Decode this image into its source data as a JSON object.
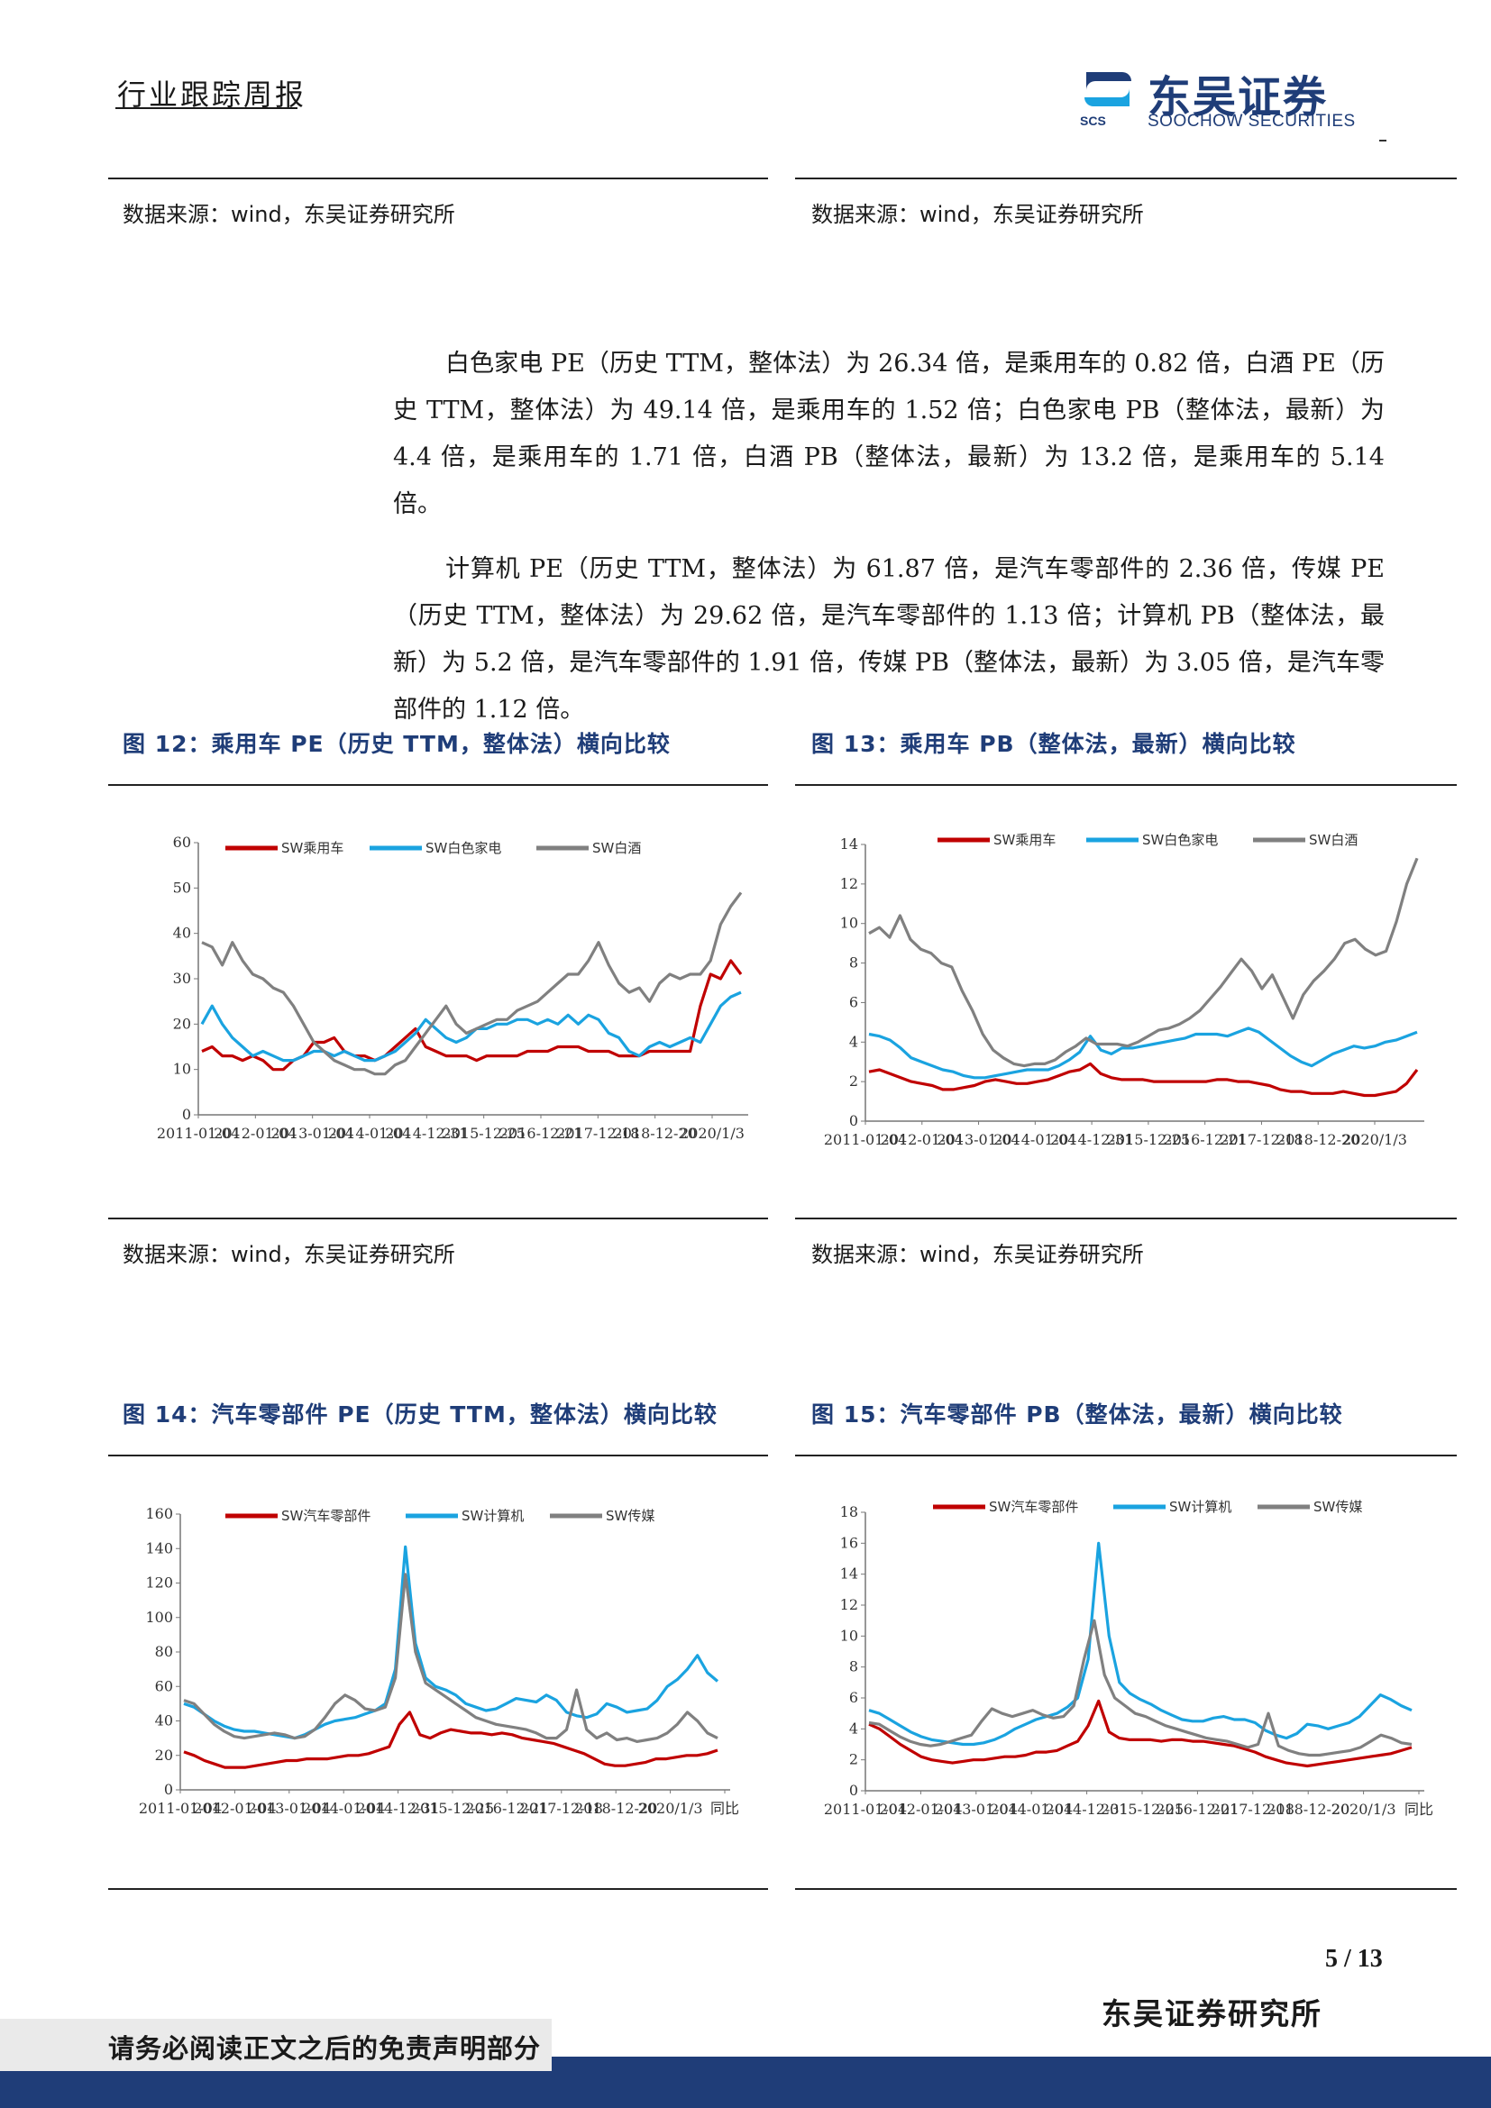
{
  "header": {
    "report_type": "行业跟踪周报",
    "logo_cn": "东吴证券",
    "logo_en": "SOOCHOW SECURITIES",
    "logo_abbr": "SCS",
    "brand_color": "#1f3d78"
  },
  "top_sources": {
    "left": "数据来源：wind，东吴证券研究所",
    "right": "数据来源：wind，东吴证券研究所"
  },
  "body": {
    "paragraphs": [
      "白色家电 PE（历史 TTM，整体法）为 26.34 倍，是乘用车的 0.82 倍，白酒 PE（历史 TTM，整体法）为 49.14 倍，是乘用车的 1.52 倍；白色家电 PB（整体法，最新）为 4.4 倍，是乘用车的 1.71 倍，白酒 PB（整体法，最新）为 13.2 倍，是乘用车的 5.14 倍。",
      "计算机 PE（历史 TTM，整体法）为 61.87 倍，是汽车零部件的 2.36 倍，传媒 PE（历史 TTM，整体法）为 29.62 倍，是汽车零部件的 1.13 倍；计算机 PB（整体法，最新）为 5.2 倍，是汽车零部件的 1.91 倍，传媒 PB（整体法，最新）为 3.05 倍，是汽车零部件的 1.12 倍。"
    ]
  },
  "figures": {
    "fig12": {
      "title": "图 12：乘用车 PE（历史 TTM，整体法）横向比较",
      "source": "数据来源：wind，东吴证券研究所"
    },
    "fig13": {
      "title": "图 13：乘用车 PB（整体法，最新）横向比较",
      "source": "数据来源：wind，东吴证券研究所"
    },
    "fig14": {
      "title": "图 14：汽车零部件 PE（历史 TTM，整体法）横向比较"
    },
    "fig15": {
      "title": "图 15：汽车零部件 PB（整体法，最新）横向比较"
    }
  },
  "chart_data": [
    {
      "id": "fig12",
      "type": "line",
      "x_tick_labels": [
        "2011-01-04",
        "2012-01-04",
        "2013-01-04",
        "2014-01-04",
        "2014-12-31",
        "2015-12-25",
        "2016-12-21",
        "2017-12-18",
        "2018-12-20",
        "2020/1/3"
      ],
      "y_ticks": [
        0,
        10,
        20,
        30,
        40,
        50,
        60
      ],
      "ylim": [
        0,
        60
      ],
      "series": [
        {
          "name": "SW乘用车",
          "color": "#c00000",
          "values": [
            14,
            15,
            13,
            13,
            12,
            13,
            12,
            10,
            10,
            12,
            13,
            16,
            16,
            17,
            14,
            13,
            13,
            12,
            13,
            15,
            17,
            19,
            15,
            14,
            13,
            13,
            13,
            12,
            13,
            13,
            13,
            13,
            14,
            14,
            14,
            15,
            15,
            15,
            14,
            14,
            14,
            13,
            13,
            13,
            14,
            14,
            14,
            14,
            14,
            24,
            31,
            30,
            34,
            31
          ]
        },
        {
          "name": "SW白色家电",
          "color": "#1aa3e0",
          "values": [
            20,
            24,
            20,
            17,
            15,
            13,
            14,
            13,
            12,
            12,
            13,
            14,
            14,
            13,
            14,
            13,
            12,
            12,
            13,
            14,
            16,
            18,
            21,
            19,
            17,
            16,
            17,
            19,
            19,
            20,
            20,
            21,
            21,
            20,
            21,
            20,
            22,
            20,
            22,
            21,
            18,
            17,
            14,
            13,
            15,
            16,
            15,
            16,
            17,
            16,
            20,
            24,
            26,
            27
          ]
        },
        {
          "name": "SW白酒",
          "color": "#808080",
          "values": [
            38,
            37,
            33,
            38,
            34,
            31,
            30,
            28,
            27,
            24,
            20,
            16,
            14,
            12,
            11,
            10,
            10,
            9,
            9,
            11,
            12,
            15,
            18,
            21,
            24,
            20,
            18,
            19,
            20,
            21,
            21,
            23,
            24,
            25,
            27,
            29,
            31,
            31,
            34,
            38,
            33,
            29,
            27,
            28,
            25,
            29,
            31,
            30,
            31,
            31,
            34,
            42,
            46,
            49
          ]
        }
      ]
    },
    {
      "id": "fig13",
      "type": "line",
      "x_tick_labels": [
        "2011-01-04",
        "2012-01-04",
        "2013-01-04",
        "2014-01-04",
        "2014-12-31",
        "2015-12-25",
        "2016-12-21",
        "2017-12-18",
        "2018-12-20",
        "2020/1/3"
      ],
      "y_ticks": [
        0,
        2,
        4,
        6,
        8,
        10,
        12,
        14
      ],
      "ylim": [
        0,
        14
      ],
      "series": [
        {
          "name": "SW乘用车",
          "color": "#c00000",
          "values": [
            2.5,
            2.6,
            2.4,
            2.2,
            2.0,
            1.9,
            1.8,
            1.6,
            1.6,
            1.7,
            1.8,
            2.0,
            2.1,
            2.0,
            1.9,
            1.9,
            2.0,
            2.1,
            2.3,
            2.5,
            2.6,
            2.9,
            2.4,
            2.2,
            2.1,
            2.1,
            2.1,
            2.0,
            2.0,
            2.0,
            2.0,
            2.0,
            2.0,
            2.1,
            2.1,
            2.0,
            2.0,
            1.9,
            1.8,
            1.6,
            1.5,
            1.5,
            1.4,
            1.4,
            1.4,
            1.5,
            1.4,
            1.3,
            1.3,
            1.4,
            1.5,
            1.9,
            2.6
          ]
        },
        {
          "name": "SW白色家电",
          "color": "#1aa3e0",
          "values": [
            4.4,
            4.3,
            4.1,
            3.7,
            3.2,
            3.0,
            2.8,
            2.6,
            2.5,
            2.3,
            2.2,
            2.2,
            2.3,
            2.4,
            2.5,
            2.6,
            2.6,
            2.6,
            2.8,
            3.1,
            3.5,
            4.3,
            3.6,
            3.4,
            3.7,
            3.7,
            3.8,
            3.9,
            4.0,
            4.1,
            4.2,
            4.4,
            4.4,
            4.4,
            4.3,
            4.5,
            4.7,
            4.5,
            4.1,
            3.7,
            3.3,
            3.0,
            2.8,
            3.1,
            3.4,
            3.6,
            3.8,
            3.7,
            3.8,
            4.0,
            4.1,
            4.3,
            4.5
          ]
        },
        {
          "name": "SW白酒",
          "color": "#808080",
          "values": [
            9.5,
            9.8,
            9.3,
            10.4,
            9.2,
            8.7,
            8.5,
            8.0,
            7.8,
            6.6,
            5.6,
            4.4,
            3.6,
            3.2,
            2.9,
            2.8,
            2.9,
            2.9,
            3.1,
            3.5,
            3.8,
            4.2,
            3.9,
            3.9,
            3.9,
            3.8,
            4.0,
            4.3,
            4.6,
            4.7,
            4.9,
            5.2,
            5.6,
            6.2,
            6.8,
            7.5,
            8.2,
            7.6,
            6.7,
            7.4,
            6.3,
            5.2,
            6.4,
            7.1,
            7.6,
            8.2,
            9.0,
            9.2,
            8.7,
            8.4,
            8.6,
            10.1,
            12.0,
            13.3
          ]
        }
      ]
    },
    {
      "id": "fig14",
      "type": "line",
      "x_tick_labels": [
        "2011-01-04",
        "2012-01-04",
        "2013-01-04",
        "2014-01-04",
        "2014-12-31",
        "2015-12-25",
        "2016-12-21",
        "2017-12-18",
        "2018-12-20",
        "2020/1/3",
        "同比"
      ],
      "y_ticks": [
        0,
        20,
        40,
        60,
        80,
        100,
        120,
        140,
        160
      ],
      "ylim": [
        0,
        160
      ],
      "series": [
        {
          "name": "SW汽车零部件",
          "color": "#c00000",
          "values": [
            22,
            20,
            17,
            15,
            13,
            13,
            13,
            14,
            15,
            16,
            17,
            17,
            18,
            18,
            18,
            19,
            20,
            20,
            21,
            23,
            25,
            38,
            45,
            32,
            30,
            33,
            35,
            34,
            33,
            33,
            32,
            33,
            32,
            30,
            29,
            28,
            27,
            25,
            23,
            21,
            18,
            15,
            14,
            14,
            15,
            16,
            18,
            18,
            19,
            20,
            20,
            21,
            23
          ]
        },
        {
          "name": "SW计算机",
          "color": "#1aa3e0",
          "values": [
            50,
            48,
            44,
            40,
            37,
            35,
            34,
            34,
            33,
            32,
            31,
            30,
            32,
            35,
            38,
            40,
            41,
            42,
            44,
            46,
            50,
            70,
            141,
            85,
            65,
            60,
            58,
            55,
            50,
            48,
            46,
            47,
            50,
            53,
            52,
            51,
            55,
            52,
            45,
            43,
            42,
            44,
            50,
            48,
            45,
            46,
            47,
            52,
            60,
            64,
            70,
            78,
            68,
            63
          ]
        },
        {
          "name": "SW传媒",
          "color": "#808080",
          "values": [
            52,
            50,
            44,
            38,
            34,
            31,
            30,
            31,
            32,
            33,
            32,
            30,
            31,
            35,
            42,
            50,
            55,
            52,
            47,
            46,
            48,
            65,
            125,
            80,
            62,
            58,
            54,
            50,
            46,
            42,
            40,
            38,
            37,
            36,
            35,
            33,
            30,
            30,
            35,
            58,
            35,
            30,
            33,
            29,
            30,
            28,
            29,
            30,
            33,
            38,
            45,
            40,
            33,
            30
          ]
        }
      ]
    },
    {
      "id": "fig15",
      "type": "line",
      "x_tick_labels": [
        "2011-01-04",
        "2012-01-04",
        "2013-01-04",
        "2014-01-04",
        "2014-12-31",
        "2015-12-25",
        "2016-12-21",
        "2017-12-18",
        "2018-12-20",
        "2020/1/3",
        "同比"
      ],
      "y_ticks": [
        0,
        2,
        4,
        6,
        8,
        10,
        12,
        14,
        16,
        18
      ],
      "ylim": [
        0,
        18
      ],
      "series": [
        {
          "name": "SW汽车零部件",
          "color": "#c00000",
          "values": [
            4.3,
            4.0,
            3.5,
            3.0,
            2.6,
            2.2,
            2.0,
            1.9,
            1.8,
            1.9,
            2.0,
            2.0,
            2.1,
            2.2,
            2.2,
            2.3,
            2.5,
            2.5,
            2.6,
            2.9,
            3.2,
            4.2,
            5.8,
            3.8,
            3.4,
            3.3,
            3.3,
            3.3,
            3.2,
            3.3,
            3.3,
            3.2,
            3.2,
            3.1,
            3.0,
            2.9,
            2.7,
            2.5,
            2.2,
            2.0,
            1.8,
            1.7,
            1.6,
            1.7,
            1.8,
            1.9,
            2.0,
            2.1,
            2.2,
            2.3,
            2.4,
            2.6,
            2.8
          ]
        },
        {
          "name": "SW计算机",
          "color": "#1aa3e0",
          "values": [
            5.2,
            5.0,
            4.6,
            4.2,
            3.8,
            3.5,
            3.3,
            3.2,
            3.1,
            3.0,
            3.0,
            3.1,
            3.3,
            3.6,
            4.0,
            4.3,
            4.6,
            4.8,
            5.0,
            5.4,
            6.0,
            8.5,
            16.0,
            10.0,
            7.0,
            6.3,
            5.9,
            5.6,
            5.2,
            4.9,
            4.6,
            4.5,
            4.5,
            4.7,
            4.8,
            4.6,
            4.6,
            4.4,
            3.9,
            3.6,
            3.4,
            3.7,
            4.3,
            4.2,
            4.0,
            4.2,
            4.4,
            4.8,
            5.5,
            6.2,
            5.9,
            5.5,
            5.2
          ]
        },
        {
          "name": "SW传媒",
          "color": "#808080",
          "values": [
            4.4,
            4.3,
            3.9,
            3.5,
            3.2,
            3.0,
            2.9,
            3.0,
            3.2,
            3.4,
            3.6,
            4.5,
            5.3,
            5.0,
            4.8,
            5.0,
            5.2,
            4.9,
            4.7,
            4.8,
            5.5,
            8.5,
            11.0,
            7.5,
            6.0,
            5.5,
            5.0,
            4.8,
            4.5,
            4.2,
            4.0,
            3.8,
            3.6,
            3.4,
            3.3,
            3.2,
            3.0,
            2.8,
            3.0,
            5.0,
            2.9,
            2.6,
            2.4,
            2.3,
            2.3,
            2.4,
            2.5,
            2.6,
            2.8,
            3.2,
            3.6,
            3.4,
            3.1,
            3.0
          ]
        }
      ]
    }
  ],
  "footer": {
    "page_number": "5 / 13",
    "institute": "东吴证券研究所",
    "disclaimer": "请务必阅读正文之后的免责声明部分"
  }
}
